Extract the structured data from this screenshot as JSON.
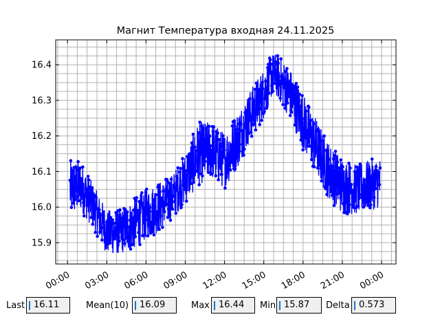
{
  "chart_data": {
    "type": "line",
    "title": "Магнит Температура входная 24.11.2025",
    "xlabel": "",
    "ylabel": "",
    "x_tick_labels": [
      "00:00",
      "03:00",
      "06:00",
      "09:00",
      "12:00",
      "15:00",
      "18:00",
      "21:00",
      "00:00"
    ],
    "x_tick_hours": [
      0,
      3,
      6,
      9,
      12,
      15,
      18,
      21,
      24
    ],
    "y_tick_labels": [
      "15.9",
      "16.0",
      "16.1",
      "16.2",
      "16.3",
      "16.4"
    ],
    "y_tick_values": [
      15.9,
      16.0,
      16.1,
      16.2,
      16.3,
      16.4
    ],
    "xlim_hours": [
      -0.9,
      25.1
    ],
    "ylim": [
      15.84,
      16.47
    ],
    "grid": true,
    "x_range_hours": [
      0.2,
      23.9
    ],
    "y_min": 15.87,
    "y_max": 16.44,
    "envelope": {
      "hours": [
        0.2,
        1,
        2,
        3,
        4,
        5,
        6,
        7,
        8,
        9,
        10,
        11,
        12,
        13,
        14,
        15,
        15.6,
        16,
        17,
        18,
        19,
        20,
        21,
        22,
        23,
        23.9
      ],
      "center": [
        16.05,
        16.06,
        16.0,
        15.93,
        15.93,
        15.95,
        15.98,
        16.0,
        16.03,
        16.08,
        16.15,
        16.16,
        16.13,
        16.19,
        16.26,
        16.32,
        16.37,
        16.37,
        16.32,
        16.24,
        16.17,
        16.1,
        16.06,
        16.05,
        16.06,
        16.07
      ],
      "spread": [
        0.09,
        0.08,
        0.07,
        0.07,
        0.07,
        0.08,
        0.08,
        0.08,
        0.07,
        0.08,
        0.1,
        0.09,
        0.09,
        0.09,
        0.08,
        0.08,
        0.07,
        0.07,
        0.08,
        0.09,
        0.09,
        0.09,
        0.09,
        0.08,
        0.08,
        0.08
      ]
    },
    "series": [
      {
        "color": "#0000ff",
        "marker": "circle"
      }
    ]
  },
  "stats": {
    "last_label": "Last",
    "last_value": "16.11",
    "mean_label": "Mean(10)",
    "mean_value": "16.09",
    "max_label": "Max",
    "max_value": "16.44",
    "min_label": "Min",
    "min_value": "15.87",
    "delta_label": "Delta",
    "delta_value": "0.573"
  }
}
